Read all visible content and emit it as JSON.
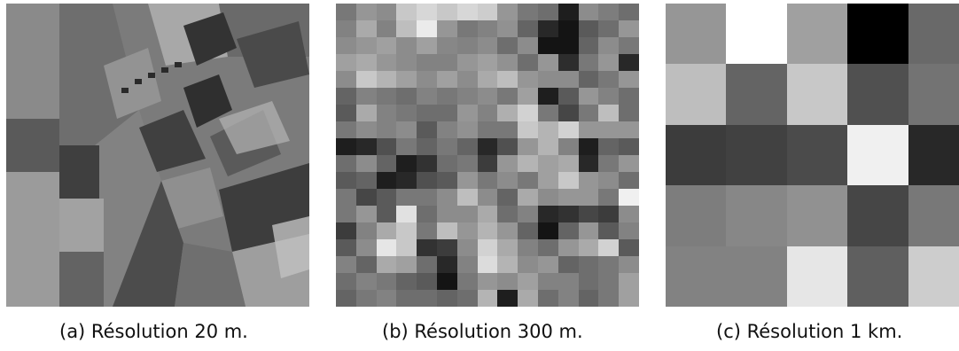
{
  "panels": [
    {
      "caption": "(a) Résolution 20 m.",
      "image": "satellite-fields-20m"
    },
    {
      "caption": "(b) Résolution 300 m.",
      "image": "pixelated-300m"
    },
    {
      "caption": "(c) Résolution 1 km.",
      "image": "pixelated-1km"
    }
  ],
  "grid_300m": [
    [
      120,
      150,
      140,
      200,
      215,
      200,
      215,
      205,
      150,
      120,
      110,
      30,
      140,
      125,
      110
    ],
    [
      130,
      170,
      130,
      190,
      235,
      150,
      120,
      130,
      145,
      100,
      40,
      20,
      90,
      110,
      150
    ],
    [
      140,
      150,
      160,
      140,
      160,
      135,
      130,
      140,
      110,
      140,
      20,
      20,
      100,
      140,
      120
    ],
    [
      160,
      170,
      150,
      140,
      130,
      130,
      150,
      160,
      145,
      110,
      150,
      45,
      120,
      150,
      40
    ],
    [
      140,
      200,
      180,
      160,
      140,
      160,
      140,
      170,
      190,
      150,
      140,
      140,
      100,
      120,
      150
    ],
    [
      100,
      130,
      120,
      110,
      130,
      120,
      130,
      140,
      120,
      160,
      30,
      90,
      150,
      130,
      110
    ],
    [
      90,
      170,
      130,
      120,
      110,
      110,
      150,
      130,
      175,
      210,
      120,
      70,
      120,
      190,
      110
    ],
    [
      120,
      140,
      130,
      140,
      90,
      130,
      145,
      120,
      120,
      200,
      180,
      210,
      150,
      150,
      150
    ],
    [
      30,
      40,
      80,
      120,
      100,
      120,
      100,
      40,
      80,
      150,
      180,
      130,
      30,
      100,
      90
    ],
    [
      110,
      140,
      100,
      30,
      50,
      110,
      120,
      60,
      150,
      180,
      160,
      170,
      40,
      120,
      150
    ],
    [
      90,
      100,
      30,
      40,
      80,
      90,
      150,
      120,
      140,
      120,
      160,
      200,
      150,
      140,
      110
    ],
    [
      120,
      70,
      90,
      120,
      120,
      140,
      190,
      140,
      100,
      170,
      140,
      150,
      150,
      120,
      240
    ],
    [
      120,
      150,
      90,
      225,
      110,
      140,
      140,
      170,
      110,
      130,
      40,
      50,
      70,
      60,
      140
    ],
    [
      60,
      130,
      170,
      200,
      120,
      190,
      150,
      180,
      150,
      100,
      20,
      100,
      150,
      90,
      130
    ],
    [
      90,
      140,
      230,
      200,
      50,
      60,
      140,
      210,
      170,
      130,
      110,
      150,
      170,
      210,
      90
    ],
    [
      130,
      100,
      170,
      160,
      110,
      40,
      130,
      220,
      180,
      140,
      150,
      100,
      110,
      120,
      140
    ],
    [
      110,
      130,
      120,
      100,
      90,
      20,
      120,
      150,
      140,
      160,
      130,
      130,
      110,
      120,
      160
    ],
    [
      100,
      120,
      130,
      110,
      110,
      100,
      110,
      180,
      30,
      170,
      110,
      130,
      100,
      120,
      160
    ]
  ],
  "grid_1km": [
    [
      150,
      255,
      160,
      0,
      105
    ],
    [
      190,
      100,
      200,
      80,
      115
    ],
    [
      60,
      65,
      75,
      240,
      40
    ],
    [
      125,
      135,
      145,
      70,
      120
    ],
    [
      130,
      130,
      230,
      95,
      205
    ]
  ]
}
